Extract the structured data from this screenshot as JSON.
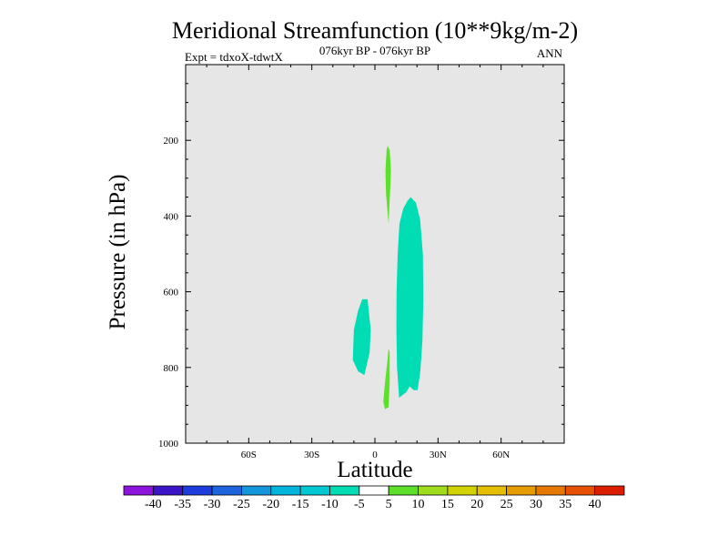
{
  "chart_data": {
    "type": "contour",
    "title": "Meridional Streamfunction (10**9kg/m-2)",
    "subtitle_left": "Expt = tdxoX-tdwtX",
    "subtitle_center": "076kyr BP - 076kyr BP",
    "subtitle_right": "ANN",
    "xlabel": "Latitude",
    "ylabel": "Pressure (in hPa)",
    "xlim": [
      -90,
      90
    ],
    "ylim": [
      1000,
      0
    ],
    "x_ticks": [
      {
        "value": -60,
        "label": "60S"
      },
      {
        "value": -30,
        "label": "30S"
      },
      {
        "value": 0,
        "label": "0"
      },
      {
        "value": 30,
        "label": "30N"
      },
      {
        "value": 60,
        "label": "60N"
      }
    ],
    "y_ticks": [
      {
        "value": 200,
        "label": "200"
      },
      {
        "value": 400,
        "label": "400"
      },
      {
        "value": 600,
        "label": "600"
      },
      {
        "value": 800,
        "label": "800"
      },
      {
        "value": 1000,
        "label": "1000"
      }
    ],
    "background_color": "#e6e6e6",
    "regions": [
      {
        "name": "positive-5-10-upper",
        "level": "5 to 10",
        "color": "#5ce02a",
        "points": [
          [
            6,
            215
          ],
          [
            7,
            225
          ],
          [
            7.6,
            280
          ],
          [
            7.2,
            340
          ],
          [
            6.5,
            420
          ],
          [
            5.3,
            340
          ],
          [
            5,
            280
          ],
          [
            5.6,
            225
          ]
        ]
      },
      {
        "name": "negative-10-5-west",
        "level": "-10 to -5",
        "color": "#00dcb4",
        "points": [
          [
            -6,
            620
          ],
          [
            -3.5,
            620
          ],
          [
            -2,
            700
          ],
          [
            -2.5,
            760
          ],
          [
            -5,
            820
          ],
          [
            -8,
            810
          ],
          [
            -10.5,
            780
          ],
          [
            -10,
            700
          ],
          [
            -8,
            650
          ]
        ]
      },
      {
        "name": "positive-5-10-lower",
        "level": "5 to 10",
        "color": "#5ce02a",
        "points": [
          [
            6.5,
            750
          ],
          [
            7,
            760
          ],
          [
            7,
            840
          ],
          [
            6.5,
            905
          ],
          [
            4.8,
            910
          ],
          [
            4,
            890
          ],
          [
            4.8,
            840
          ],
          [
            5.8,
            790
          ]
        ]
      },
      {
        "name": "negative-10-5-east",
        "level": "-10 to -5",
        "color": "#00dcb4",
        "points": [
          [
            17,
            350
          ],
          [
            19.5,
            365
          ],
          [
            21.5,
            410
          ],
          [
            22.8,
            500
          ],
          [
            23,
            620
          ],
          [
            22.6,
            730
          ],
          [
            21.6,
            810
          ],
          [
            20.3,
            860
          ],
          [
            18.5,
            860
          ],
          [
            16.5,
            850
          ],
          [
            15,
            865
          ],
          [
            11.5,
            880
          ],
          [
            10.5,
            800
          ],
          [
            10.2,
            700
          ],
          [
            10.3,
            600
          ],
          [
            10.8,
            500
          ],
          [
            11.7,
            420
          ],
          [
            13.5,
            380
          ],
          [
            15.5,
            360
          ]
        ]
      }
    ],
    "colorbar": {
      "labels": [
        "-40",
        "-35",
        "-30",
        "-25",
        "-20",
        "-15",
        "-10",
        "-5",
        "5",
        "10",
        "15",
        "20",
        "25",
        "30",
        "35",
        "40"
      ],
      "colors": [
        "#8c14dc",
        "#3c14c8",
        "#1e3cdc",
        "#1e64dc",
        "#1496dc",
        "#00b4dc",
        "#00c8d2",
        "#00dcb4",
        "#ffffff",
        "#5ce02a",
        "#a0dc1e",
        "#d2d200",
        "#e6be00",
        "#e69b00",
        "#e67800",
        "#e65000",
        "#dc1e00"
      ]
    }
  }
}
